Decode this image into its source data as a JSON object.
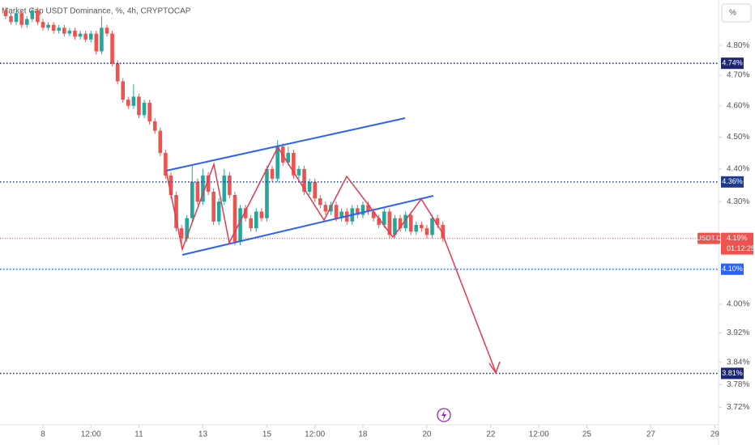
{
  "chart_data": {
    "type": "candlestick",
    "title": "Market Cap USDT Dominance, %, 4h, CRYPTOCAP",
    "scale_button": "%",
    "log_scale": true,
    "up_color": "#26a69a",
    "down_color": "#ef5350",
    "x": [
      -7,
      -6,
      -5,
      -4,
      -3,
      -2,
      -1,
      0,
      1,
      2,
      3,
      4,
      5,
      6,
      7,
      8,
      9,
      10,
      11,
      12,
      13,
      14,
      15,
      16,
      17,
      18,
      19,
      20,
      21,
      22,
      23,
      24,
      25,
      26,
      27,
      28,
      29,
      30,
      31,
      32,
      33,
      34,
      35,
      36,
      37,
      38,
      39,
      40,
      41,
      42,
      43,
      44,
      45,
      46,
      47,
      48,
      49,
      50,
      51,
      52,
      53,
      54,
      55,
      56,
      57,
      58,
      59,
      60,
      61,
      62,
      63,
      64,
      65,
      66,
      67,
      68,
      69,
      70,
      71,
      72,
      73,
      74,
      75
    ],
    "open": [
      4.92,
      4.9,
      4.88,
      4.91,
      4.87,
      4.89,
      4.92,
      4.88,
      4.86,
      4.87,
      4.85,
      4.86,
      4.84,
      4.85,
      4.83,
      4.84,
      4.82,
      4.84,
      4.78,
      4.86,
      4.84,
      4.74,
      4.68,
      4.62,
      4.6,
      4.63,
      4.57,
      4.61,
      4.55,
      4.52,
      4.45,
      4.38,
      4.32,
      4.22,
      4.19,
      4.25,
      4.36,
      4.3,
      4.38,
      4.33,
      4.24,
      4.3,
      4.38,
      4.32,
      4.18,
      4.28,
      4.25,
      4.22,
      4.27,
      4.25,
      4.4,
      4.37,
      4.47,
      4.42,
      4.45,
      4.38,
      4.4,
      4.33,
      4.36,
      4.31,
      4.29,
      4.27,
      4.29,
      4.25,
      4.27,
      4.24,
      4.28,
      4.26,
      4.29,
      4.27,
      4.25,
      4.23,
      4.27,
      4.2,
      4.25,
      4.22,
      4.26,
      4.21,
      4.23,
      4.22,
      4.2,
      4.25,
      4.23
    ],
    "high": [
      4.93,
      4.91,
      4.92,
      4.92,
      4.9,
      4.93,
      4.93,
      4.89,
      4.88,
      4.88,
      4.87,
      4.87,
      4.86,
      4.86,
      4.85,
      4.85,
      4.85,
      4.85,
      4.9,
      4.87,
      4.85,
      4.75,
      4.69,
      4.63,
      4.67,
      4.64,
      4.62,
      4.62,
      4.56,
      4.53,
      4.46,
      4.39,
      4.33,
      4.23,
      4.26,
      4.41,
      4.37,
      4.4,
      4.39,
      4.34,
      4.31,
      4.4,
      4.39,
      4.33,
      4.29,
      4.29,
      4.26,
      4.28,
      4.28,
      4.41,
      4.41,
      4.49,
      4.48,
      4.47,
      4.46,
      4.41,
      4.41,
      4.37,
      4.37,
      4.32,
      4.3,
      4.3,
      4.3,
      4.28,
      4.28,
      4.29,
      4.29,
      4.3,
      4.3,
      4.28,
      4.26,
      4.28,
      4.28,
      4.26,
      4.26,
      4.27,
      4.27,
      4.24,
      4.24,
      4.23,
      4.26,
      4.26,
      4.24
    ],
    "low": [
      4.89,
      4.87,
      4.87,
      4.86,
      4.86,
      4.88,
      4.87,
      4.85,
      4.85,
      4.84,
      4.84,
      4.83,
      4.83,
      4.82,
      4.82,
      4.81,
      4.81,
      4.77,
      4.77,
      4.83,
      4.73,
      4.67,
      4.61,
      4.59,
      4.59,
      4.56,
      4.56,
      4.54,
      4.51,
      4.44,
      4.37,
      4.31,
      4.21,
      4.17,
      4.18,
      4.24,
      4.29,
      4.29,
      4.32,
      4.23,
      4.23,
      4.29,
      4.31,
      4.17,
      4.17,
      4.24,
      4.21,
      4.21,
      4.24,
      4.24,
      4.36,
      4.36,
      4.41,
      4.41,
      4.37,
      4.37,
      4.32,
      4.32,
      4.3,
      4.28,
      4.26,
      4.26,
      4.24,
      4.24,
      4.23,
      4.23,
      4.25,
      4.25,
      4.26,
      4.24,
      4.22,
      4.22,
      4.19,
      4.19,
      4.21,
      4.21,
      4.2,
      4.2,
      4.21,
      4.19,
      4.19,
      4.22,
      4.18
    ],
    "close": [
      4.9,
      4.88,
      4.91,
      4.87,
      4.89,
      4.92,
      4.88,
      4.86,
      4.87,
      4.85,
      4.86,
      4.84,
      4.85,
      4.83,
      4.84,
      4.82,
      4.84,
      4.78,
      4.86,
      4.84,
      4.74,
      4.68,
      4.62,
      4.6,
      4.63,
      4.57,
      4.61,
      4.55,
      4.52,
      4.45,
      4.38,
      4.32,
      4.22,
      4.19,
      4.25,
      4.36,
      4.3,
      4.38,
      4.33,
      4.24,
      4.3,
      4.38,
      4.32,
      4.18,
      4.28,
      4.25,
      4.22,
      4.27,
      4.25,
      4.4,
      4.37,
      4.47,
      4.42,
      4.45,
      4.38,
      4.4,
      4.33,
      4.36,
      4.31,
      4.29,
      4.27,
      4.29,
      4.25,
      4.27,
      4.24,
      4.28,
      4.26,
      4.29,
      4.27,
      4.25,
      4.23,
      4.27,
      4.2,
      4.25,
      4.22,
      4.26,
      4.21,
      4.23,
      4.22,
      4.2,
      4.25,
      4.23,
      4.19
    ],
    "xlim": [
      -8.05,
      126.7
    ],
    "xticks": [
      {
        "value": 0,
        "label": "8"
      },
      {
        "value": 9,
        "label": "12:00"
      },
      {
        "value": 18,
        "label": "11"
      },
      {
        "value": 30,
        "label": "13"
      },
      {
        "value": 42,
        "label": "15"
      },
      {
        "value": 51,
        "label": "12:00"
      },
      {
        "value": 60,
        "label": "18"
      },
      {
        "value": 72,
        "label": "20"
      },
      {
        "value": 84,
        "label": "22"
      },
      {
        "value": 93,
        "label": "12:00"
      },
      {
        "value": 102,
        "label": "25"
      },
      {
        "value": 114,
        "label": "27"
      },
      {
        "value": 126,
        "label": "29"
      }
    ],
    "ylim": [
      3.685,
      4.956
    ],
    "yticks": [
      {
        "value": 4.8,
        "label": "4.80%"
      },
      {
        "value": 4.7,
        "label": "4.70%"
      },
      {
        "value": 4.6,
        "label": "4.60%"
      },
      {
        "value": 4.5,
        "label": "4.50%"
      },
      {
        "value": 4.4,
        "label": "4.40%"
      },
      {
        "value": 4.3,
        "label": "4.30%"
      },
      {
        "value": 4.0,
        "label": "4.00%"
      },
      {
        "value": 3.92,
        "label": "3.92%"
      },
      {
        "value": 3.84,
        "label": "3.84%"
      },
      {
        "value": 3.78,
        "label": "3.78%"
      },
      {
        "value": 3.72,
        "label": "3.72%"
      }
    ],
    "levels": [
      {
        "value": 4.74,
        "label": "4.74%",
        "color": "#1c2671"
      },
      {
        "value": 4.36,
        "label": "4.36%",
        "color": "#1c3a8f"
      },
      {
        "value": 4.1,
        "label": "4.10%",
        "color": "#2962ff"
      },
      {
        "value": 3.81,
        "label": "3.81%",
        "color": "#1c2671"
      }
    ],
    "last_price": {
      "value": 4.19,
      "label": "4.19%",
      "symbol": "USDT.D",
      "countdown": "01:12:25",
      "color": "#ef5350"
    }
  }
}
